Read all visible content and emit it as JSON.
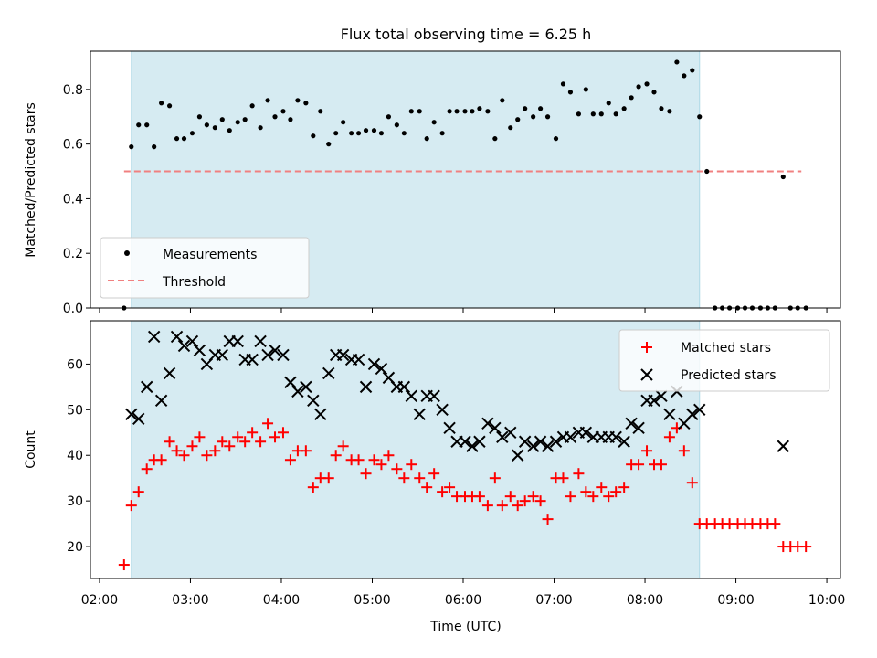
{
  "figure": {
    "title": "Flux total observing time = 6.25 h",
    "xlabel": "Time (UTC)",
    "x_ticks": [
      "02:00",
      "03:00",
      "04:00",
      "05:00",
      "06:00",
      "07:00",
      "08:00",
      "09:00",
      "10:00"
    ],
    "shade_color": "#add8e6"
  },
  "chart_data": [
    {
      "type": "scatter",
      "ylabel": "Matched/Predicted stars",
      "x_unit": "hours UTC",
      "xlim": [
        1.9,
        10.15
      ],
      "ylim": [
        0,
        0.94
      ],
      "y_ticks": [
        "0.0",
        "0.2",
        "0.4",
        "0.6",
        "0.8"
      ],
      "grid": false,
      "legend_position": "lower-left",
      "shaded_region": [
        2.35,
        8.6
      ],
      "threshold": {
        "name": "Threshold",
        "value": 0.5,
        "x_range": [
          2.27,
          9.72
        ],
        "color": "#f08080"
      },
      "series": [
        {
          "name": "Measurements",
          "color": "#000000",
          "x": [
            2.27,
            2.35,
            2.43,
            2.52,
            2.6,
            2.68,
            2.77,
            2.85,
            2.93,
            3.02,
            3.1,
            3.18,
            3.27,
            3.35,
            3.43,
            3.52,
            3.6,
            3.68,
            3.77,
            3.85,
            3.93,
            4.02,
            4.1,
            4.18,
            4.27,
            4.35,
            4.43,
            4.52,
            4.6,
            4.68,
            4.77,
            4.85,
            4.93,
            5.02,
            5.1,
            5.18,
            5.27,
            5.35,
            5.43,
            5.52,
            5.6,
            5.68,
            5.77,
            5.85,
            5.93,
            6.02,
            6.1,
            6.18,
            6.27,
            6.35,
            6.43,
            6.52,
            6.6,
            6.68,
            6.77,
            6.85,
            6.93,
            7.02,
            7.1,
            7.18,
            7.27,
            7.35,
            7.43,
            7.52,
            7.6,
            7.68,
            7.77,
            7.85,
            7.93,
            8.02,
            8.1,
            8.18,
            8.27,
            8.35,
            8.43,
            8.52,
            8.6,
            8.68,
            8.77,
            8.85,
            8.93,
            9.02,
            9.1,
            9.18,
            9.27,
            9.35,
            9.43,
            9.52,
            9.6,
            9.68,
            9.77
          ],
          "y": [
            0.0,
            0.59,
            0.67,
            0.67,
            0.59,
            0.75,
            0.74,
            0.62,
            0.62,
            0.64,
            0.7,
            0.67,
            0.66,
            0.69,
            0.65,
            0.68,
            0.69,
            0.74,
            0.66,
            0.76,
            0.7,
            0.72,
            0.69,
            0.76,
            0.75,
            0.63,
            0.72,
            0.6,
            0.64,
            0.68,
            0.64,
            0.64,
            0.65,
            0.65,
            0.64,
            0.7,
            0.67,
            0.64,
            0.72,
            0.72,
            0.62,
            0.68,
            0.64,
            0.72,
            0.72,
            0.72,
            0.72,
            0.73,
            0.72,
            0.62,
            0.76,
            0.66,
            0.69,
            0.73,
            0.7,
            0.73,
            0.7,
            0.62,
            0.82,
            0.79,
            0.71,
            0.8,
            0.71,
            0.71,
            0.75,
            0.71,
            0.73,
            0.77,
            0.81,
            0.82,
            0.79,
            0.73,
            0.72,
            0.9,
            0.85,
            0.87,
            0.7,
            0.5,
            0.0,
            0.0,
            0.0,
            0.0,
            0.0,
            0.0,
            0.0,
            0.0,
            0.0,
            0.48,
            0.0,
            0.0,
            0.0
          ]
        }
      ]
    },
    {
      "type": "scatter",
      "ylabel": "Count",
      "x_unit": "hours UTC",
      "xlim": [
        1.9,
        10.15
      ],
      "ylim": [
        13,
        69.5
      ],
      "y_ticks": [
        "20",
        "30",
        "40",
        "50",
        "60"
      ],
      "grid": false,
      "legend_position": "upper-right",
      "shaded_region": [
        2.35,
        8.6
      ],
      "series": [
        {
          "name": "Matched stars",
          "color": "#ff0000",
          "marker": "plus",
          "x": [
            2.27,
            2.35,
            2.43,
            2.52,
            2.6,
            2.68,
            2.77,
            2.85,
            2.93,
            3.02,
            3.1,
            3.18,
            3.27,
            3.35,
            3.43,
            3.52,
            3.6,
            3.68,
            3.77,
            3.85,
            3.93,
            4.02,
            4.1,
            4.18,
            4.27,
            4.35,
            4.43,
            4.52,
            4.6,
            4.68,
            4.77,
            4.85,
            4.93,
            5.02,
            5.1,
            5.18,
            5.27,
            5.35,
            5.43,
            5.52,
            5.6,
            5.68,
            5.77,
            5.85,
            5.93,
            6.02,
            6.1,
            6.18,
            6.27,
            6.35,
            6.43,
            6.52,
            6.6,
            6.68,
            6.77,
            6.85,
            6.93,
            7.02,
            7.1,
            7.18,
            7.27,
            7.35,
            7.43,
            7.52,
            7.6,
            7.68,
            7.77,
            7.85,
            7.93,
            8.02,
            8.1,
            8.18,
            8.27,
            8.35,
            8.43,
            8.52,
            8.6,
            8.68,
            8.77,
            8.85,
            8.93,
            9.02,
            9.1,
            9.18,
            9.27,
            9.35,
            9.43,
            9.52,
            9.6,
            9.68,
            9.77
          ],
          "y": [
            16,
            29,
            32,
            37,
            39,
            39,
            43,
            41,
            40,
            42,
            44,
            40,
            41,
            43,
            42,
            44,
            43,
            45,
            43,
            47,
            44,
            45,
            39,
            41,
            41,
            33,
            35,
            35,
            40,
            42,
            39,
            39,
            36,
            39,
            38,
            40,
            37,
            35,
            38,
            35,
            33,
            36,
            32,
            33,
            31,
            31,
            31,
            31,
            29,
            35,
            29,
            31,
            29,
            30,
            31,
            30,
            26,
            35,
            35,
            31,
            36,
            32,
            31,
            33,
            31,
            32,
            33,
            38,
            38,
            41,
            38,
            38,
            44,
            46,
            41,
            34,
            25,
            25,
            25,
            25,
            25,
            25,
            25,
            25,
            25,
            25,
            25,
            20,
            20,
            20,
            20
          ]
        },
        {
          "name": "Predicted stars",
          "color": "#000000",
          "marker": "x",
          "x": [
            2.35,
            2.43,
            2.52,
            2.6,
            2.68,
            2.77,
            2.85,
            2.93,
            3.02,
            3.1,
            3.18,
            3.27,
            3.35,
            3.43,
            3.52,
            3.6,
            3.68,
            3.77,
            3.85,
            3.93,
            4.02,
            4.1,
            4.18,
            4.27,
            4.35,
            4.43,
            4.52,
            4.6,
            4.68,
            4.77,
            4.85,
            4.93,
            5.02,
            5.1,
            5.18,
            5.27,
            5.35,
            5.43,
            5.52,
            5.6,
            5.68,
            5.77,
            5.85,
            5.93,
            6.02,
            6.1,
            6.18,
            6.27,
            6.35,
            6.43,
            6.52,
            6.6,
            6.68,
            6.77,
            6.85,
            6.93,
            7.02,
            7.1,
            7.18,
            7.27,
            7.35,
            7.43,
            7.52,
            7.6,
            7.68,
            7.77,
            7.85,
            7.93,
            8.02,
            8.1,
            8.18,
            8.27,
            8.35,
            8.43,
            8.52,
            8.6,
            9.52
          ],
          "y": [
            49,
            48,
            55,
            66,
            52,
            58,
            66,
            64,
            65,
            63,
            60,
            62,
            62,
            65,
            65,
            61,
            61,
            65,
            62,
            63,
            62,
            56,
            54,
            55,
            52,
            49,
            58,
            62,
            62,
            61,
            61,
            55,
            60,
            59,
            57,
            55,
            55,
            53,
            49,
            53,
            53,
            50,
            46,
            43,
            43,
            42,
            43,
            47,
            46,
            44,
            45,
            40,
            43,
            42,
            43,
            42,
            43,
            44,
            44,
            45,
            45,
            44,
            44,
            44,
            44,
            43,
            47,
            46,
            52,
            52,
            53,
            49,
            54,
            47,
            49,
            50,
            42
          ]
        }
      ]
    }
  ]
}
